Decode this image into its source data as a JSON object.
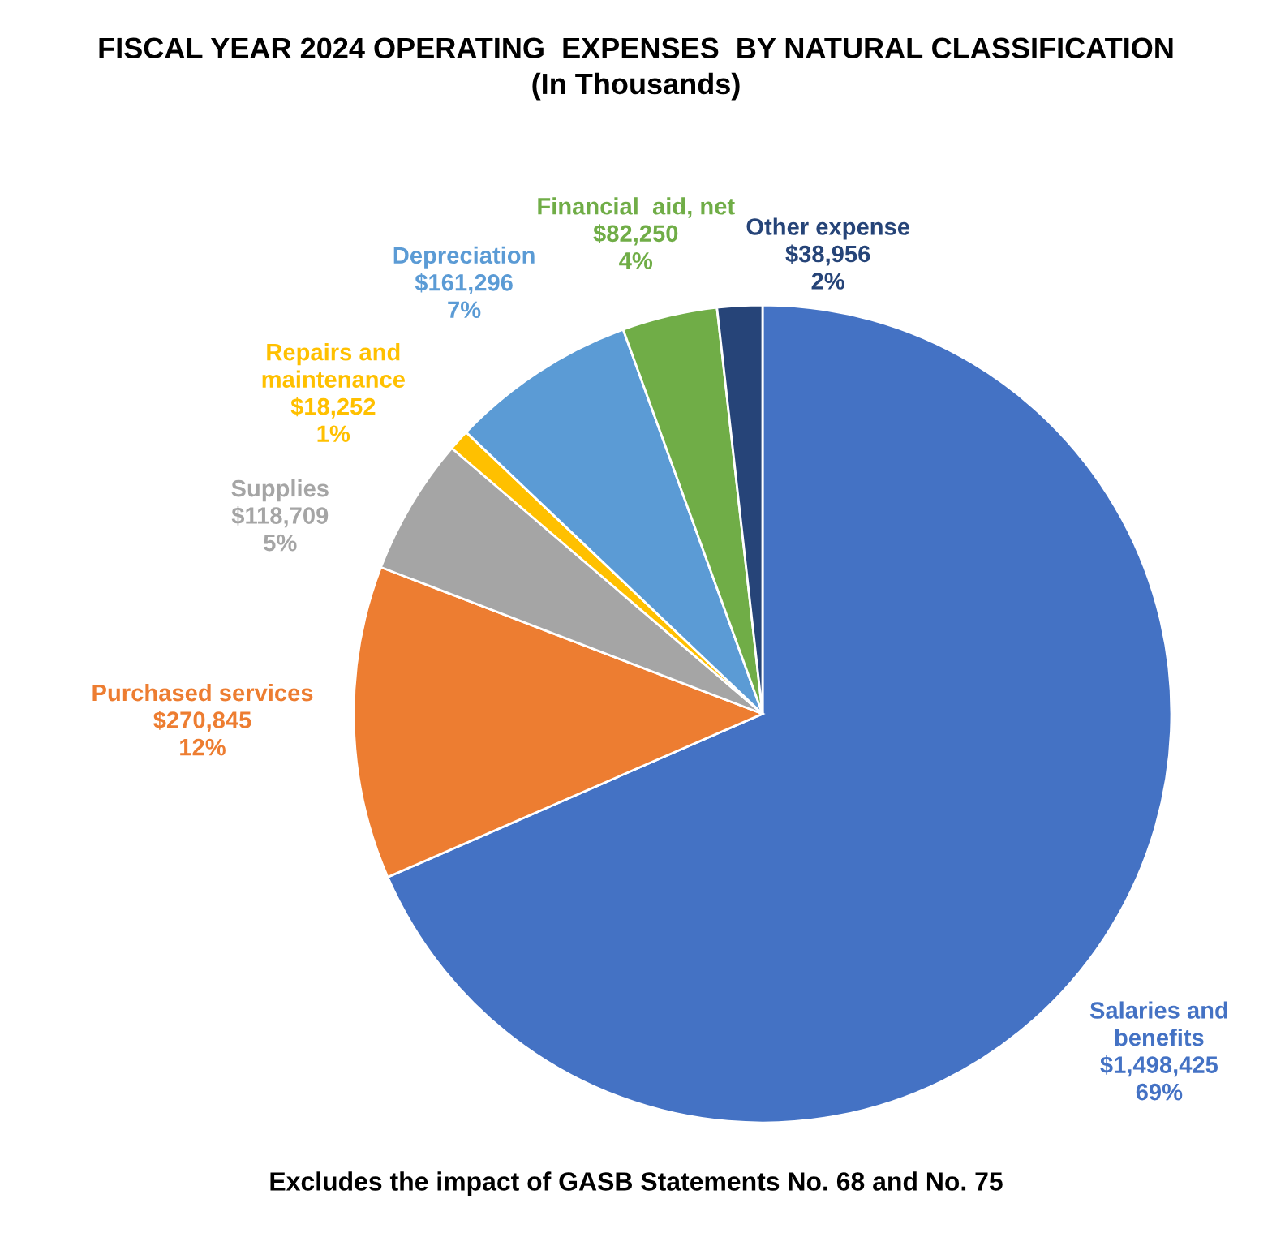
{
  "chart_data": {
    "type": "pie",
    "title": "FISCAL YEAR 2024 OPERATING  EXPENSES  BY NATURAL CLASSIFICATION\n(In Thousands)",
    "categories": [
      "Salaries and\nbenefits",
      "Purchased services",
      "Supplies",
      "Repairs and\nmaintenance",
      "Depreciation",
      "Financial  aid, net",
      "Other expense"
    ],
    "values": [
      1498425,
      270845,
      118709,
      18252,
      161296,
      82250,
      38956
    ],
    "value_labels": [
      "$1,498,425\n69%",
      "$270,845\n12%",
      "$118,709\n5%",
      "$18,252\n1%",
      "$161,296\n7%",
      "$82,250\n4%",
      "$38,956\n2%"
    ],
    "colors": [
      "#4472c4",
      "#ed7d31",
      "#a5a5a5",
      "#ffc000",
      "#5b9bd5",
      "#70ad47",
      "#264478"
    ],
    "annotations": [
      "Excludes the impact of GASB Statements No. 68 and No. 75"
    ]
  }
}
